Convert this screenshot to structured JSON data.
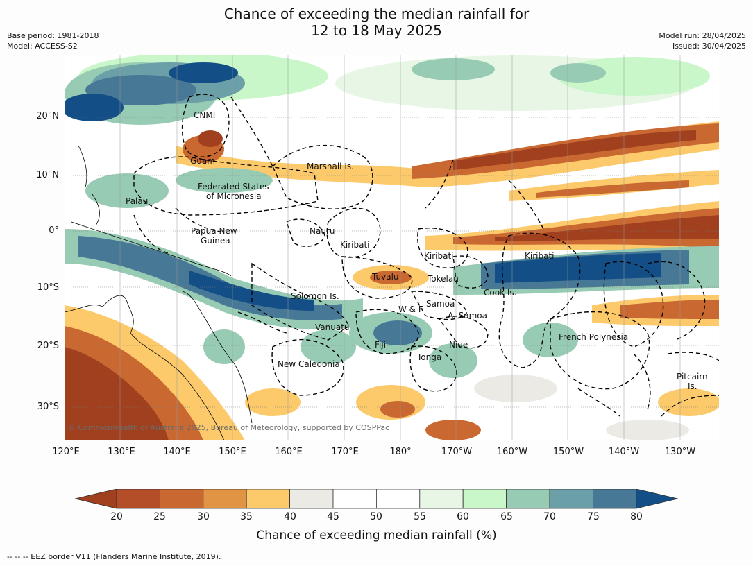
{
  "title_line1": "Chance of exceeding the median rainfall for",
  "title_line2": "12 to 18 May 2025",
  "meta": {
    "base_period": "Base period: 1981-2018",
    "model": "Model: ACCESS-S2",
    "model_run": "Model run: 28/04/2025",
    "issued": "Issued: 30/04/2025"
  },
  "axes": {
    "lat_labels": [
      "20°N",
      "10°N",
      "0°",
      "10°S",
      "20°S",
      "30°S"
    ],
    "lon_labels": [
      "120°E",
      "130°E",
      "140°E",
      "150°E",
      "160°E",
      "170°E",
      "180°",
      "170°W",
      "160°W",
      "150°W",
      "140°W",
      "130°W"
    ]
  },
  "places": {
    "cnmi": "CNMI",
    "guam": "Guam",
    "marshall": "Marshall Is.",
    "fsm1": "Federated States",
    "fsm2": "of Micronesia",
    "palau": "Palau",
    "png1": "Papua New",
    "png2": "Guinea",
    "nauru": "Nauru",
    "kiribati_w": "Kiribati",
    "kiribati_c": "Kiribati",
    "kiribati_e": "Kiribati",
    "tuvalu": "Tuvalu",
    "tokelau": "Tokelau",
    "solomon": "Solomon Is.",
    "wf": "W & F",
    "samoa": "Samoa",
    "asamoa": "A. Samoa",
    "cook": "Cook Is.",
    "vanuatu": "Vanuatu",
    "fiji": "Fiji",
    "niue": "Niue",
    "tonga": "Tonga",
    "newcal": "New Caledonia",
    "frpoly": "French Polynesia",
    "pitcairn1": "Pitcairn",
    "pitcairn2": "Is."
  },
  "copyright": "© Commonwealth of Australia 2025, Bureau of Meteorology, supported by COSPPac",
  "colorbar": {
    "ticks": [
      "20",
      "25",
      "30",
      "35",
      "40",
      "45",
      "50",
      "55",
      "60",
      "65",
      "70",
      "75",
      "80"
    ],
    "colors": [
      "#a0401f",
      "#b34e28",
      "#c96830",
      "#e19444",
      "#fcca6a",
      "#eceae4",
      "#ffffff",
      "#ffffff",
      "#e8f6e6",
      "#c9f7c9",
      "#98cbb4",
      "#6ca0a8",
      "#477896",
      "#134f86"
    ],
    "label": "Chance of exceeding median rainfall (%)"
  },
  "footnote": "--  --  -- EEZ border V11 (Flanders Marine Institute, 2019)."
}
